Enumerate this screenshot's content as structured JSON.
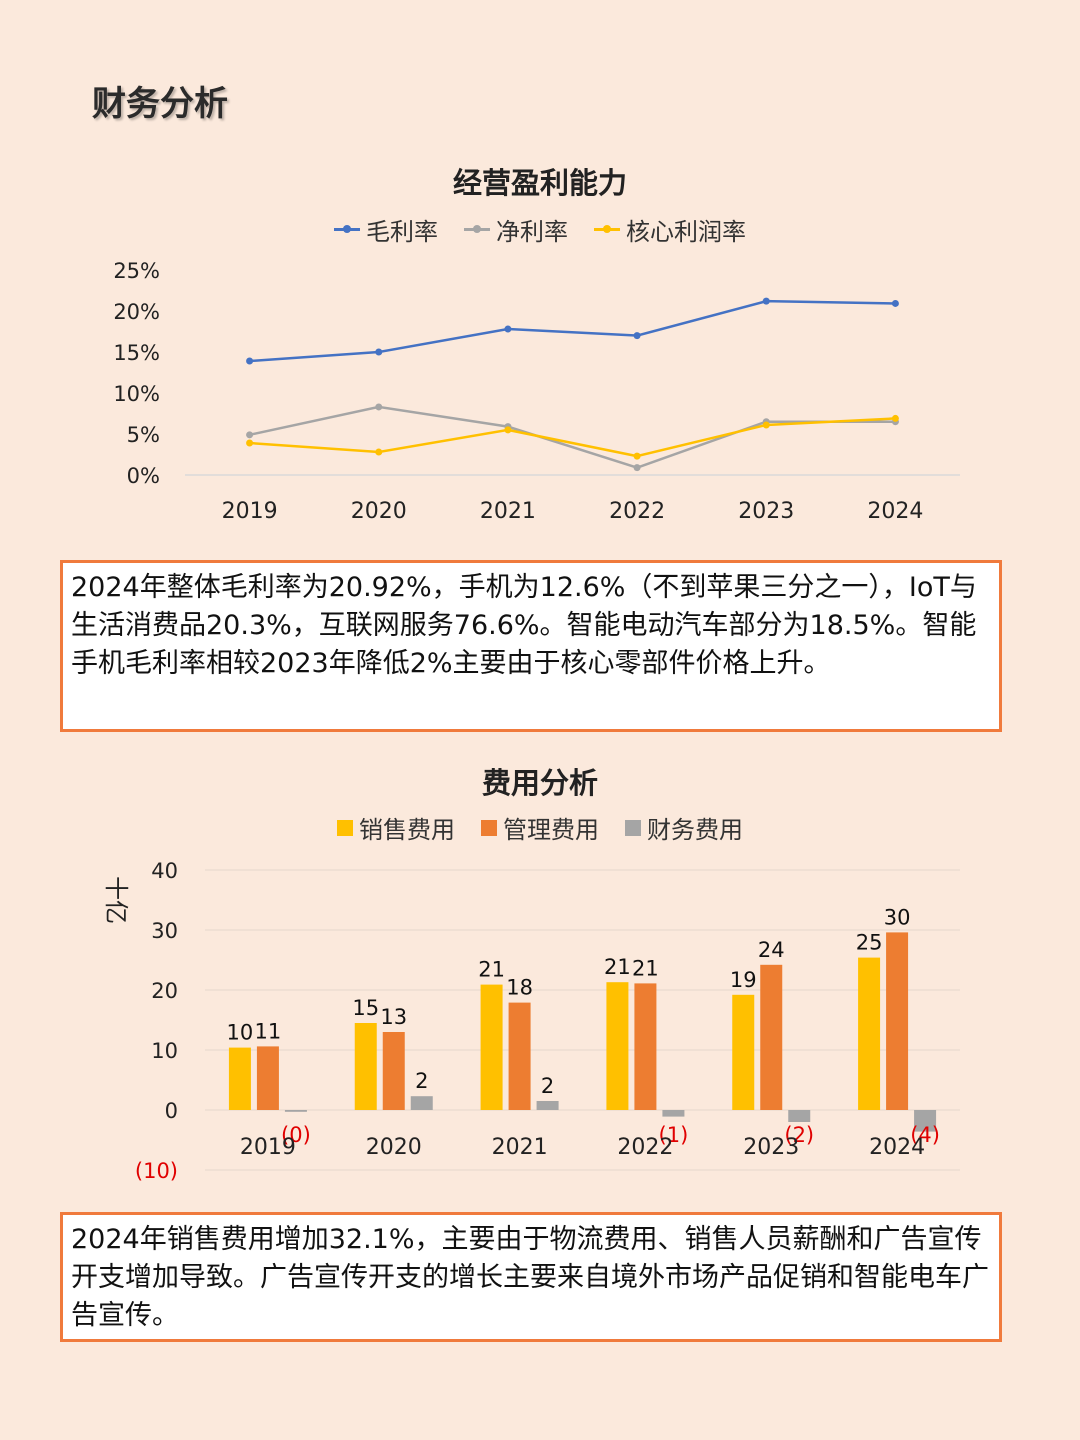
{
  "page_title": "财务分析",
  "chart_data": [
    {
      "type": "line",
      "title": "经营盈利能力",
      "categories": [
        "2019",
        "2020",
        "2021",
        "2022",
        "2023",
        "2024"
      ],
      "y_ticks": [
        "0%",
        "5%",
        "10%",
        "15%",
        "20%",
        "25%"
      ],
      "ylim": [
        0,
        25
      ],
      "legend_position": "top",
      "series": [
        {
          "name": "毛利率",
          "color": "#4472c4",
          "values": [
            13.9,
            15.0,
            17.8,
            17.0,
            21.2,
            20.92
          ]
        },
        {
          "name": "净利率",
          "color": "#a5a5a5",
          "values": [
            4.9,
            8.3,
            5.9,
            0.9,
            6.5,
            6.5
          ]
        },
        {
          "name": "核心利润率",
          "color": "#ffc000",
          "values": [
            3.9,
            2.8,
            5.5,
            2.3,
            6.1,
            6.9
          ]
        }
      ]
    },
    {
      "type": "bar",
      "title": "费用分析",
      "ylabel": "十亿",
      "categories": [
        "2019",
        "2020",
        "2021",
        "2022",
        "2023",
        "2024"
      ],
      "y_ticks": [
        "(10)",
        "0",
        "10",
        "20",
        "30",
        "40"
      ],
      "ylim": [
        -10,
        40
      ],
      "legend_position": "top",
      "series": [
        {
          "name": "销售费用",
          "color": "#ffc000",
          "values": [
            10.4,
            14.5,
            20.9,
            21.3,
            19.2,
            25.4
          ],
          "labels": [
            "10",
            "15",
            "21",
            "21",
            "19",
            "25"
          ]
        },
        {
          "name": "管理费用",
          "color": "#ed7d31",
          "values": [
            10.6,
            13.0,
            17.9,
            21.1,
            24.2,
            29.6
          ],
          "labels": [
            "11",
            "13",
            "18",
            "21",
            "24",
            "30"
          ]
        },
        {
          "name": "财务费用",
          "color": "#a5a5a5",
          "values": [
            -0.3,
            2.3,
            1.5,
            -1.1,
            -2.0,
            -3.6
          ],
          "labels": [
            "(0)",
            "2",
            "2",
            "(1)",
            "(2)",
            "(4)"
          ]
        }
      ]
    }
  ],
  "notes": {
    "profit": "2024年整体毛利率为20.92%，手机为12.6%（不到苹果三分之一），IoT与生活消费品20.3%，互联网服务76.6%。智能电动汽车部分为18.5%。智能手机毛利率相较2023年降低2%主要由于核心零部件价格上升。",
    "expense": "2024年销售费用增加32.1%，主要由于物流费用、销售人员薪酬和广告宣传开支增加导致。广告宣传开支的增长主要来自境外市场产品促销和智能电车广告宣传。"
  },
  "colors": {
    "background": "#fbe9dc",
    "border": "#f07a3c",
    "negative_label": "#e00000"
  }
}
